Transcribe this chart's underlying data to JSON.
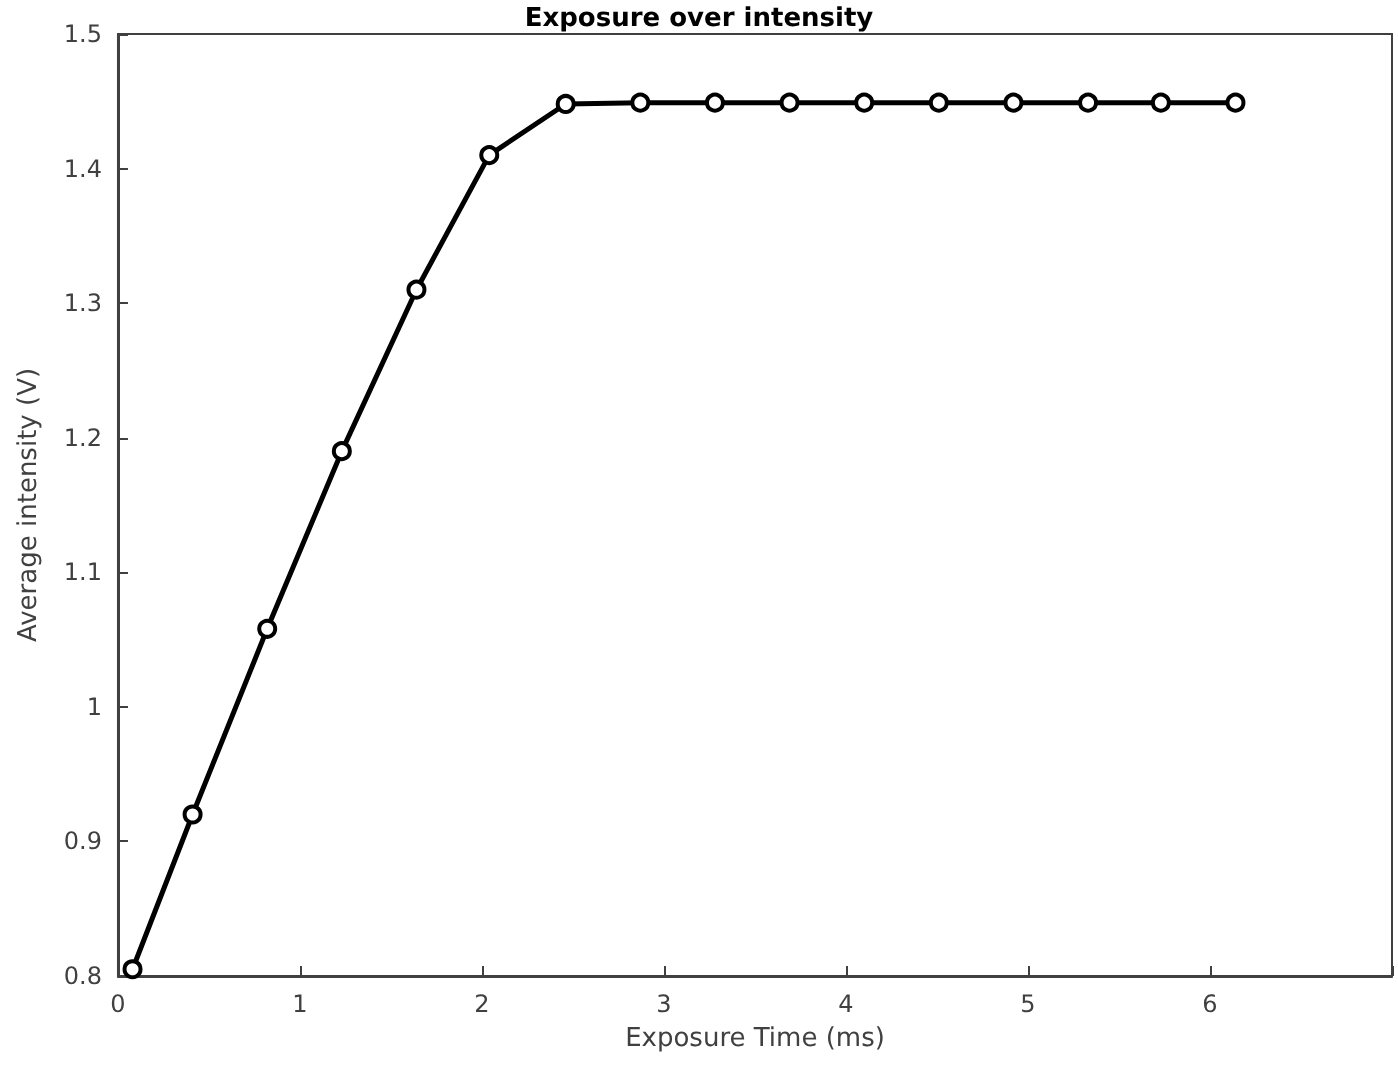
{
  "chart_data": {
    "type": "line",
    "title": "Exposure over intensity",
    "xlabel": "Exposure Time (ms)",
    "ylabel": "Average intensity (V)",
    "x": [
      0.08,
      0.41,
      0.82,
      1.23,
      1.64,
      2.04,
      2.46,
      2.87,
      3.28,
      3.69,
      4.1,
      4.51,
      4.92,
      5.33,
      5.73,
      6.14
    ],
    "series": [
      {
        "color": "#000000",
        "values": [
          0.805,
          0.92,
          1.058,
          1.19,
          1.31,
          1.41,
          1.448,
          1.449,
          1.449,
          1.449,
          1.449,
          1.449,
          1.449,
          1.449,
          1.449,
          1.449
        ]
      }
    ],
    "xlim": [
      0,
      7
    ],
    "xticks": [
      0,
      1,
      2,
      3,
      4,
      5,
      6,
      {
        "value": 7,
        "label": null
      }
    ],
    "ylim": [
      0.8,
      1.5
    ],
    "yticks": [
      0.8,
      0.9,
      1,
      1.1,
      1.2,
      1.3,
      1.4,
      1.5
    ],
    "grid": false,
    "marker": "circle",
    "line_style": "solid"
  }
}
